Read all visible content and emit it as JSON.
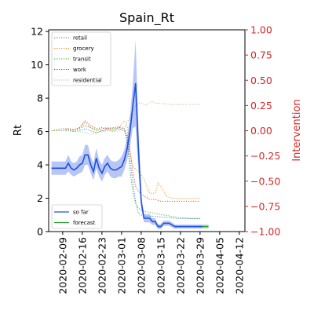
{
  "chart_data": {
    "type": "line",
    "title": "Spain_Rt",
    "ylabel": "Rt",
    "ylabel_right": "Intervention",
    "ylim": [
      0,
      12.1
    ],
    "ylim_right": [
      -1.0,
      1.0
    ],
    "xlim": [
      0,
      70
    ],
    "y_ticks": [
      "0",
      "2",
      "4",
      "6",
      "8",
      "10",
      "12"
    ],
    "y_ticks_right": [
      "1.00",
      "0.75",
      "0.50",
      "0.25",
      "0.00",
      "−0.25",
      "−0.50",
      "−0.75",
      "−1.00"
    ],
    "x_ticks": [
      {
        "day": 5,
        "label": "2020-02-09"
      },
      {
        "day": 12,
        "label": "2020-02-16"
      },
      {
        "day": 19,
        "label": "2020-02-23"
      },
      {
        "day": 26,
        "label": "2020-03-01"
      },
      {
        "day": 33,
        "label": "2020-03-08"
      },
      {
        "day": 40,
        "label": "2020-03-15"
      },
      {
        "day": 47,
        "label": "2020-03-22"
      },
      {
        "day": 54,
        "label": "2020-03-29"
      },
      {
        "day": 61,
        "label": "2020-04-05"
      },
      {
        "day": 68,
        "label": "2020-04-12"
      }
    ],
    "series": [
      {
        "name": "so far",
        "color": "#1f4fe0",
        "points": [
          [
            1,
            3.8
          ],
          [
            2,
            3.8
          ],
          [
            3,
            3.8
          ],
          [
            4,
            3.8
          ],
          [
            5,
            3.8
          ],
          [
            6,
            3.8
          ],
          [
            7,
            4.1
          ],
          [
            8,
            3.8
          ],
          [
            9,
            3.7
          ],
          [
            10,
            3.8
          ],
          [
            11,
            4.0
          ],
          [
            12,
            4.1
          ],
          [
            13,
            4.6
          ],
          [
            14,
            4.6
          ],
          [
            15,
            4.0
          ],
          [
            16,
            3.6
          ],
          [
            17,
            4.4
          ],
          [
            18,
            3.8
          ],
          [
            19,
            3.5
          ],
          [
            20,
            3.9
          ],
          [
            21,
            4.1
          ],
          [
            22,
            3.8
          ],
          [
            23,
            3.7
          ],
          [
            24,
            3.7
          ],
          [
            25,
            3.8
          ],
          [
            26,
            3.9
          ],
          [
            27,
            4.3
          ],
          [
            28,
            5.0
          ],
          [
            29,
            6.0
          ],
          [
            30,
            7.5
          ],
          [
            31,
            8.9
          ],
          [
            32,
            5.0
          ],
          [
            33,
            1.8
          ],
          [
            34,
            0.8
          ],
          [
            35,
            0.8
          ],
          [
            36,
            0.8
          ],
          [
            37,
            0.6
          ],
          [
            38,
            0.6
          ],
          [
            39,
            0.3
          ],
          [
            40,
            0.3
          ],
          [
            41,
            0.5
          ],
          [
            42,
            0.5
          ],
          [
            43,
            0.5
          ],
          [
            44,
            0.4
          ],
          [
            45,
            0.3
          ],
          [
            46,
            0.3
          ],
          [
            47,
            0.3
          ],
          [
            48,
            0.3
          ],
          [
            49,
            0.3
          ],
          [
            50,
            0.3
          ],
          [
            51,
            0.3
          ],
          [
            52,
            0.3
          ],
          [
            53,
            0.3
          ],
          [
            54,
            0.3
          ],
          [
            55,
            0.3
          ]
        ],
        "band_half_width": [
          0.4,
          0.4,
          0.4,
          0.4,
          0.4,
          0.4,
          0.5,
          0.4,
          0.4,
          0.4,
          0.5,
          0.5,
          0.6,
          0.6,
          0.5,
          0.5,
          0.6,
          0.5,
          0.5,
          0.5,
          0.5,
          0.5,
          0.5,
          0.5,
          0.5,
          0.6,
          0.6,
          0.7,
          0.9,
          1.3,
          2.6,
          1.4,
          0.4,
          0.25,
          0.25,
          0.25,
          0.2,
          0.2,
          0.15,
          0.15,
          0.15,
          0.15,
          0.15,
          0.15,
          0.12,
          0.12,
          0.12,
          0.12,
          0.12,
          0.12,
          0.12,
          0.12,
          0.12,
          0.12,
          0.12
        ],
        "secondary_axis": false
      },
      {
        "name": "forecast",
        "color": "#2ca02c",
        "points": [
          [
            55,
            0.3
          ],
          [
            56,
            0.3
          ],
          [
            57,
            0.3
          ]
        ],
        "band_half_width": [
          0.12,
          0.12,
          0.12
        ],
        "secondary_axis": false
      },
      {
        "name": "retail",
        "color": "#1f77b4",
        "secondary_axis": true,
        "points": [
          [
            1,
            0.0
          ],
          [
            3,
            0.0
          ],
          [
            5,
            0.0
          ],
          [
            7,
            0.0
          ],
          [
            9,
            -0.01
          ],
          [
            11,
            0.0
          ],
          [
            13,
            0.02
          ],
          [
            15,
            0.0
          ],
          [
            17,
            -0.02
          ],
          [
            19,
            0.0
          ],
          [
            21,
            0.01
          ],
          [
            23,
            0.0
          ],
          [
            25,
            0.02
          ],
          [
            27,
            0.0
          ],
          [
            28,
            -0.1
          ],
          [
            29,
            -0.3
          ],
          [
            30,
            -0.5
          ],
          [
            31,
            -0.7
          ],
          [
            32,
            -0.82
          ],
          [
            34,
            -0.85
          ],
          [
            38,
            -0.85
          ],
          [
            42,
            -0.86
          ],
          [
            46,
            -0.87
          ],
          [
            50,
            -0.87
          ],
          [
            54,
            -0.87
          ]
        ]
      },
      {
        "name": "grocery",
        "color": "#ff7f0e",
        "secondary_axis": true,
        "points": [
          [
            1,
            0.0
          ],
          [
            3,
            0.0
          ],
          [
            5,
            0.0
          ],
          [
            7,
            0.02
          ],
          [
            9,
            0.01
          ],
          [
            11,
            0.03
          ],
          [
            13,
            0.08
          ],
          [
            15,
            0.03
          ],
          [
            17,
            0.01
          ],
          [
            19,
            0.0
          ],
          [
            21,
            0.02
          ],
          [
            23,
            0.01
          ],
          [
            25,
            0.03
          ],
          [
            27,
            0.1
          ],
          [
            28,
            0.05
          ],
          [
            29,
            -0.2
          ],
          [
            30,
            -0.35
          ],
          [
            31,
            -0.38
          ],
          [
            32,
            -0.4
          ],
          [
            34,
            -0.48
          ],
          [
            36,
            -0.62
          ],
          [
            38,
            -0.62
          ],
          [
            39,
            -0.52
          ],
          [
            40,
            -0.55
          ],
          [
            42,
            -0.65
          ],
          [
            44,
            -0.67
          ],
          [
            48,
            -0.67
          ],
          [
            54,
            -0.67
          ]
        ]
      },
      {
        "name": "transit",
        "color": "#2ca02c",
        "secondary_axis": true,
        "points": [
          [
            1,
            0.0
          ],
          [
            3,
            0.0
          ],
          [
            5,
            0.0
          ],
          [
            7,
            0.01
          ],
          [
            9,
            0.0
          ],
          [
            11,
            0.02
          ],
          [
            13,
            0.05
          ],
          [
            15,
            0.03
          ],
          [
            17,
            0.0
          ],
          [
            19,
            0.02
          ],
          [
            21,
            0.03
          ],
          [
            23,
            0.02
          ],
          [
            25,
            0.03
          ],
          [
            27,
            0.02
          ],
          [
            28,
            -0.1
          ],
          [
            29,
            -0.4
          ],
          [
            30,
            -0.6
          ],
          [
            31,
            -0.72
          ],
          [
            32,
            -0.77
          ],
          [
            34,
            -0.8
          ],
          [
            38,
            -0.82
          ],
          [
            42,
            -0.84
          ],
          [
            46,
            -0.86
          ],
          [
            50,
            -0.87
          ],
          [
            54,
            -0.87
          ]
        ]
      },
      {
        "name": "work",
        "color": "#d62728",
        "secondary_axis": true,
        "points": [
          [
            1,
            0.0
          ],
          [
            3,
            0.01
          ],
          [
            5,
            0.02
          ],
          [
            7,
            0.02
          ],
          [
            9,
            0.01
          ],
          [
            11,
            0.03
          ],
          [
            13,
            0.1
          ],
          [
            15,
            0.05
          ],
          [
            17,
            0.02
          ],
          [
            19,
            0.03
          ],
          [
            21,
            0.02
          ],
          [
            23,
            0.03
          ],
          [
            25,
            0.04
          ],
          [
            27,
            0.02
          ],
          [
            28,
            -0.05
          ],
          [
            29,
            -0.2
          ],
          [
            30,
            -0.4
          ],
          [
            31,
            -0.55
          ],
          [
            32,
            -0.6
          ],
          [
            34,
            -0.65
          ],
          [
            36,
            -0.68
          ],
          [
            38,
            -0.68
          ],
          [
            40,
            -0.7
          ],
          [
            42,
            -0.7
          ],
          [
            46,
            -0.7
          ],
          [
            50,
            -0.7
          ],
          [
            54,
            -0.7
          ]
        ]
      },
      {
        "name": "residential",
        "color": "#9bc17a",
        "secondary_axis": true,
        "points": [
          [
            1,
            0.0
          ],
          [
            3,
            0.0
          ],
          [
            5,
            0.0
          ],
          [
            7,
            0.0
          ],
          [
            9,
            0.0
          ],
          [
            11,
            -0.01
          ],
          [
            13,
            -0.02
          ],
          [
            15,
            -0.03
          ],
          [
            17,
            -0.02
          ],
          [
            19,
            -0.01
          ],
          [
            21,
            0.0
          ],
          [
            23,
            -0.01
          ],
          [
            25,
            0.0
          ],
          [
            27,
            0.02
          ],
          [
            28,
            0.08
          ],
          [
            29,
            0.14
          ],
          [
            30,
            0.2
          ],
          [
            31,
            0.25
          ],
          [
            32,
            0.27
          ],
          [
            33,
            0.28
          ],
          [
            34,
            0.26
          ],
          [
            35,
            0.25
          ],
          [
            36,
            0.28
          ],
          [
            37,
            0.29
          ],
          [
            38,
            0.27
          ],
          [
            40,
            0.27
          ],
          [
            44,
            0.26
          ],
          [
            50,
            0.26
          ],
          [
            54,
            0.26
          ]
        ]
      }
    ],
    "legends": {
      "intervention": [
        "retail",
        "grocery",
        "transit",
        "work",
        "residential"
      ],
      "rt": [
        "so far",
        "forecast"
      ]
    }
  }
}
